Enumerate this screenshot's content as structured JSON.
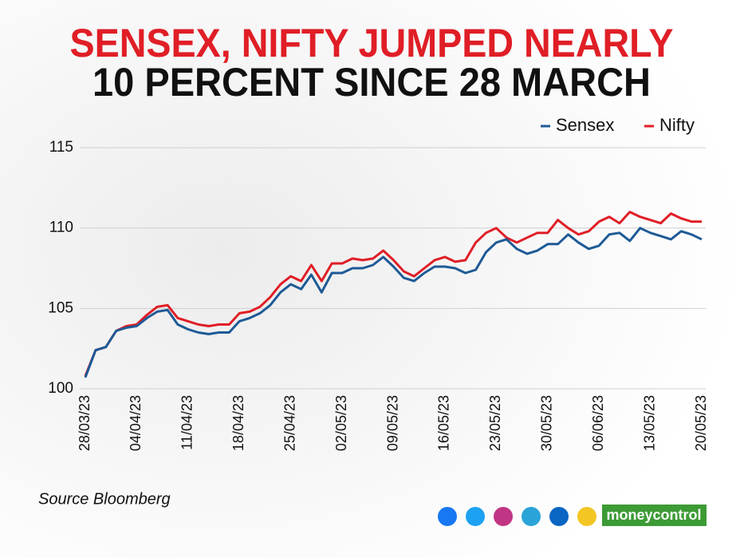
{
  "chart_data": {
    "type": "line",
    "title": [
      "SENSEX, NIFTY JUMPED NEARLY",
      "10 PERCENT SINCE 28 MARCH"
    ],
    "source": "Source Bloomberg",
    "brand": "moneycontrol",
    "categories": [
      "28/03/23",
      null,
      null,
      null,
      null,
      "04/04/23",
      null,
      null,
      null,
      null,
      "11/04/23",
      null,
      null,
      null,
      null,
      "18/04/23",
      null,
      null,
      null,
      null,
      "25/04/23",
      null,
      null,
      null,
      null,
      "02/05/23",
      null,
      null,
      null,
      null,
      "09/05/23",
      null,
      null,
      null,
      null,
      "16/05/23",
      null,
      null,
      null,
      null,
      "23/05/23",
      null,
      null,
      null,
      null,
      "30/05/23",
      null,
      null,
      null,
      null,
      "06/06/23",
      null,
      null,
      null,
      null,
      "13/05/23",
      null,
      null,
      null,
      null,
      "20/05/23"
    ],
    "series": [
      {
        "name": "Sensex",
        "color": "#1e5a96",
        "values": [
          100.7,
          102.4,
          102.6,
          103.6,
          103.8,
          103.9,
          104.4,
          104.8,
          104.9,
          104.0,
          103.7,
          103.5,
          103.4,
          103.5,
          103.5,
          104.2,
          104.4,
          104.7,
          105.2,
          106.0,
          106.5,
          106.2,
          107.1,
          106.0,
          107.2,
          107.2,
          107.5,
          107.5,
          107.7,
          108.2,
          107.6,
          106.9,
          106.7,
          107.2,
          107.6,
          107.6,
          107.5,
          107.2,
          107.4,
          108.5,
          109.1,
          109.3,
          108.7,
          108.4,
          108.6,
          109.0,
          109.0,
          109.6,
          109.1,
          108.7,
          108.9,
          109.6,
          109.7,
          109.2,
          110.0,
          109.7,
          109.5,
          109.3,
          109.8,
          109.6,
          109.3
        ]
      },
      {
        "name": "Nifty",
        "color": "#e01e26",
        "values": [
          100.8,
          102.4,
          102.6,
          103.6,
          103.9,
          104.0,
          104.6,
          105.1,
          105.2,
          104.4,
          104.2,
          104.0,
          103.9,
          104.0,
          104.0,
          104.7,
          104.8,
          105.1,
          105.7,
          106.5,
          107.0,
          106.7,
          107.7,
          106.7,
          107.8,
          107.8,
          108.1,
          108.0,
          108.1,
          108.6,
          108.0,
          107.3,
          107.0,
          107.5,
          108.0,
          108.2,
          107.9,
          108.0,
          109.1,
          109.7,
          110.0,
          109.4,
          109.1,
          109.4,
          109.7,
          109.7,
          110.5,
          110.0,
          109.6,
          109.8,
          110.4,
          110.7,
          110.3,
          111.0,
          110.7,
          110.5,
          110.3,
          110.9,
          110.6,
          110.4,
          110.4
        ]
      }
    ],
    "ylim": [
      100,
      115
    ],
    "yticks": [
      100,
      105,
      110,
      115
    ],
    "grid": true,
    "legend": "top-right"
  }
}
